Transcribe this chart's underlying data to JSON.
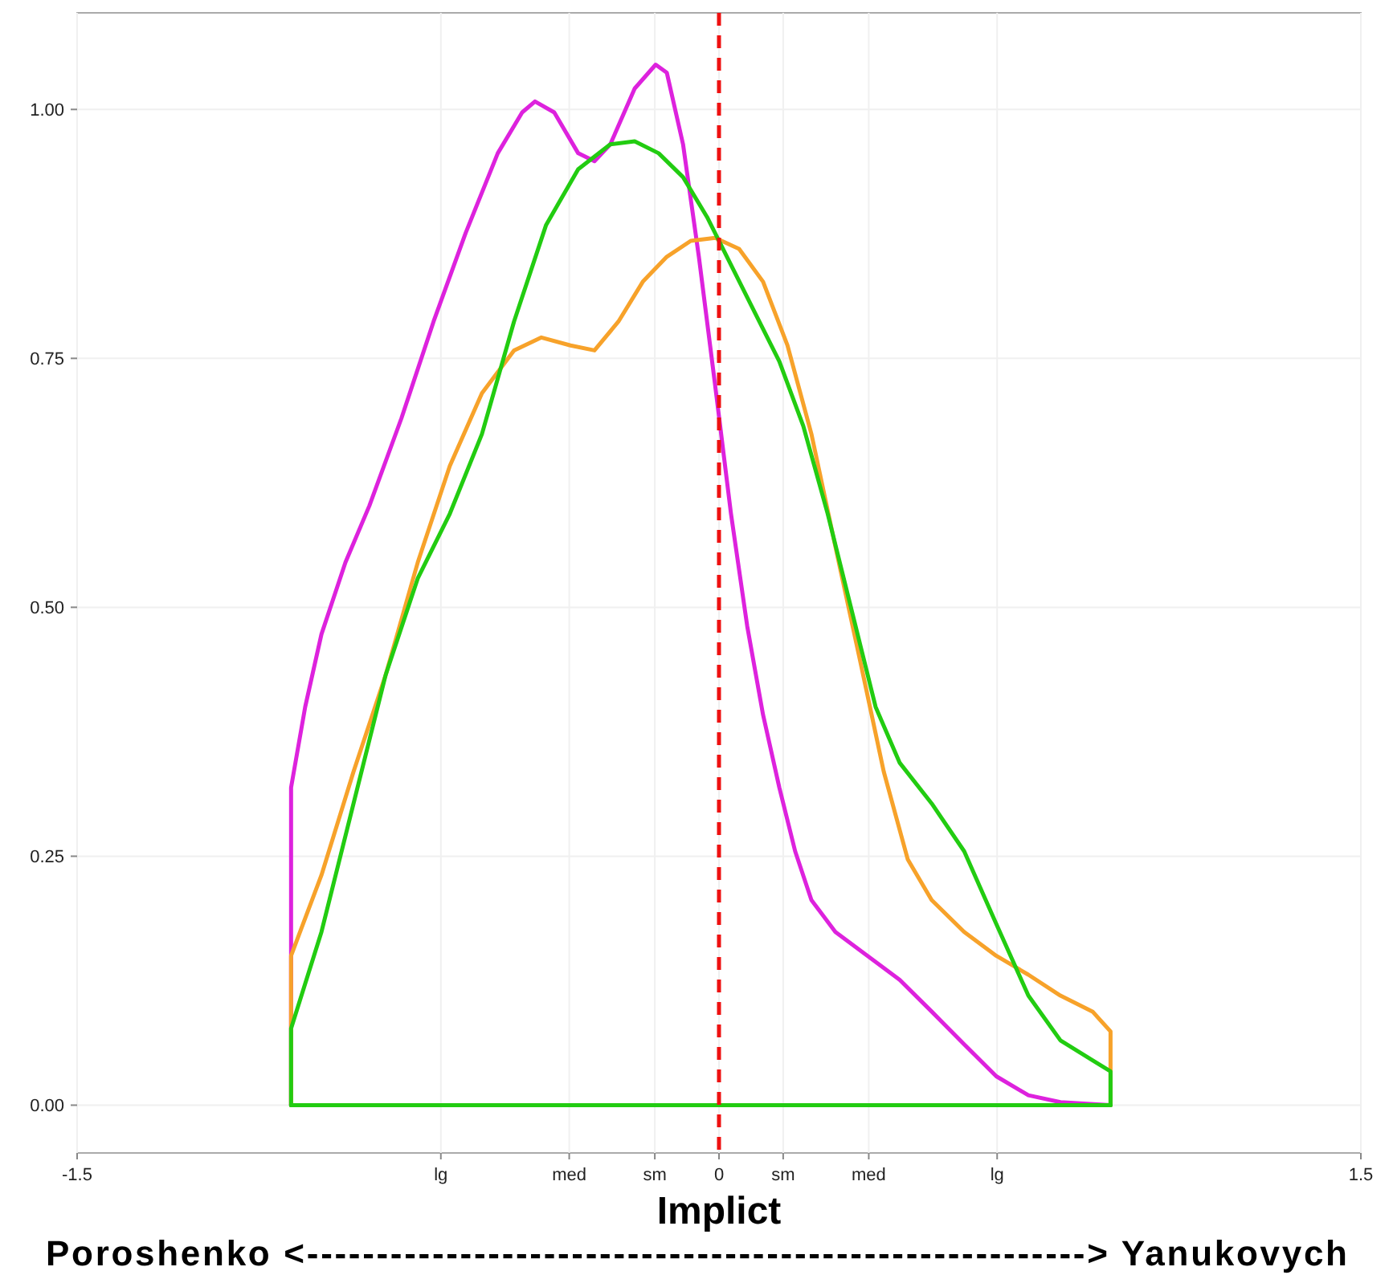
{
  "chart_data": {
    "type": "line",
    "xlabel": "Implict",
    "annotations": [
      "Poroshenko <--------------------------------------------------------> Yanukovych"
    ],
    "xlim": [
      -1.5,
      1.5
    ],
    "xticks": [
      -1.5,
      {
        "value": -0.65,
        "label": "lg"
      },
      {
        "value": -0.35,
        "label": "med"
      },
      {
        "value": -0.15,
        "label": "sm"
      },
      0,
      {
        "value": 0.15,
        "label": "sm"
      },
      {
        "value": 0.35,
        "label": "med"
      },
      {
        "value": 0.65,
        "label": "lg"
      },
      1.5
    ],
    "ylim": [
      -0.048,
      1.097
    ],
    "yticks": [
      {
        "value": 0,
        "label": "0.00"
      },
      {
        "value": 0.25,
        "label": "0.25"
      },
      {
        "value": 0.5,
        "label": "0.50"
      },
      {
        "value": 0.75,
        "label": "0.75"
      },
      {
        "value": 1,
        "label": "1.00"
      }
    ],
    "grid": true,
    "line_style": "solid",
    "marker": "none",
    "ref_lines": [
      {
        "axis": "x",
        "value": 0,
        "color": "#ee1111",
        "line_style": "dashed"
      }
    ],
    "series": [
      {
        "color": "#dd22dd",
        "x": [
          -1,
          -1,
          -0.967,
          -0.929,
          -0.873,
          -0.817,
          -0.742,
          -0.667,
          -0.592,
          -0.517,
          -0.46,
          -0.43,
          -0.385,
          -0.329,
          -0.291,
          -0.254,
          -0.197,
          -0.148,
          -0.122,
          -0.084,
          -0.047,
          -0.009,
          0.028,
          0.066,
          0.103,
          0.141,
          0.178,
          0.216,
          0.272,
          0.347,
          0.422,
          0.497,
          0.573,
          0.648,
          0.723,
          0.798,
          0.915
        ],
        "values": [
          0,
          0.319,
          0.4,
          0.473,
          0.545,
          0.602,
          0.69,
          0.787,
          0.876,
          0.956,
          0.997,
          1.008,
          0.997,
          0.956,
          0.948,
          0.965,
          1.021,
          1.045,
          1.037,
          0.965,
          0.852,
          0.723,
          0.594,
          0.481,
          0.392,
          0.319,
          0.255,
          0.206,
          0.174,
          0.15,
          0.126,
          0.094,
          0.061,
          0.029,
          0.01,
          0.003,
          0
        ]
      },
      {
        "color": "#f7a22a",
        "x": [
          -1,
          -1,
          -0.929,
          -0.854,
          -0.779,
          -0.704,
          -0.629,
          -0.554,
          -0.479,
          -0.415,
          -0.347,
          -0.291,
          -0.235,
          -0.178,
          -0.122,
          -0.066,
          -0.009,
          0.047,
          0.103,
          0.16,
          0.216,
          0.272,
          0.329,
          0.385,
          0.441,
          0.497,
          0.573,
          0.648,
          0.723,
          0.798,
          0.873,
          0.915,
          0.915
        ],
        "values": [
          0,
          0.15,
          0.231,
          0.335,
          0.432,
          0.545,
          0.642,
          0.715,
          0.758,
          0.771,
          0.763,
          0.758,
          0.787,
          0.827,
          0.852,
          0.868,
          0.871,
          0.86,
          0.827,
          0.763,
          0.674,
          0.561,
          0.448,
          0.335,
          0.247,
          0.206,
          0.174,
          0.15,
          0.131,
          0.11,
          0.094,
          0.074,
          0
        ]
      },
      {
        "color": "#22cc11",
        "x": [
          -1,
          -1,
          -0.929,
          -0.854,
          -0.779,
          -0.704,
          -0.629,
          -0.554,
          -0.479,
          -0.404,
          -0.329,
          -0.254,
          -0.197,
          -0.141,
          -0.084,
          -0.028,
          0.028,
          0.085,
          0.141,
          0.197,
          0.254,
          0.31,
          0.366,
          0.422,
          0.497,
          0.573,
          0.648,
          0.723,
          0.798,
          0.873,
          0.915,
          0.915
        ],
        "values": [
          0,
          0.077,
          0.174,
          0.303,
          0.432,
          0.529,
          0.594,
          0.674,
          0.787,
          0.884,
          0.94,
          0.965,
          0.968,
          0.956,
          0.932,
          0.892,
          0.844,
          0.795,
          0.747,
          0.682,
          0.594,
          0.497,
          0.4,
          0.344,
          0.303,
          0.255,
          0.182,
          0.11,
          0.065,
          0.045,
          0.034,
          0
        ]
      },
      {
        "color": "#22cc11",
        "x": [
          -1,
          0.915
        ],
        "values": [
          0,
          0
        ]
      }
    ]
  }
}
